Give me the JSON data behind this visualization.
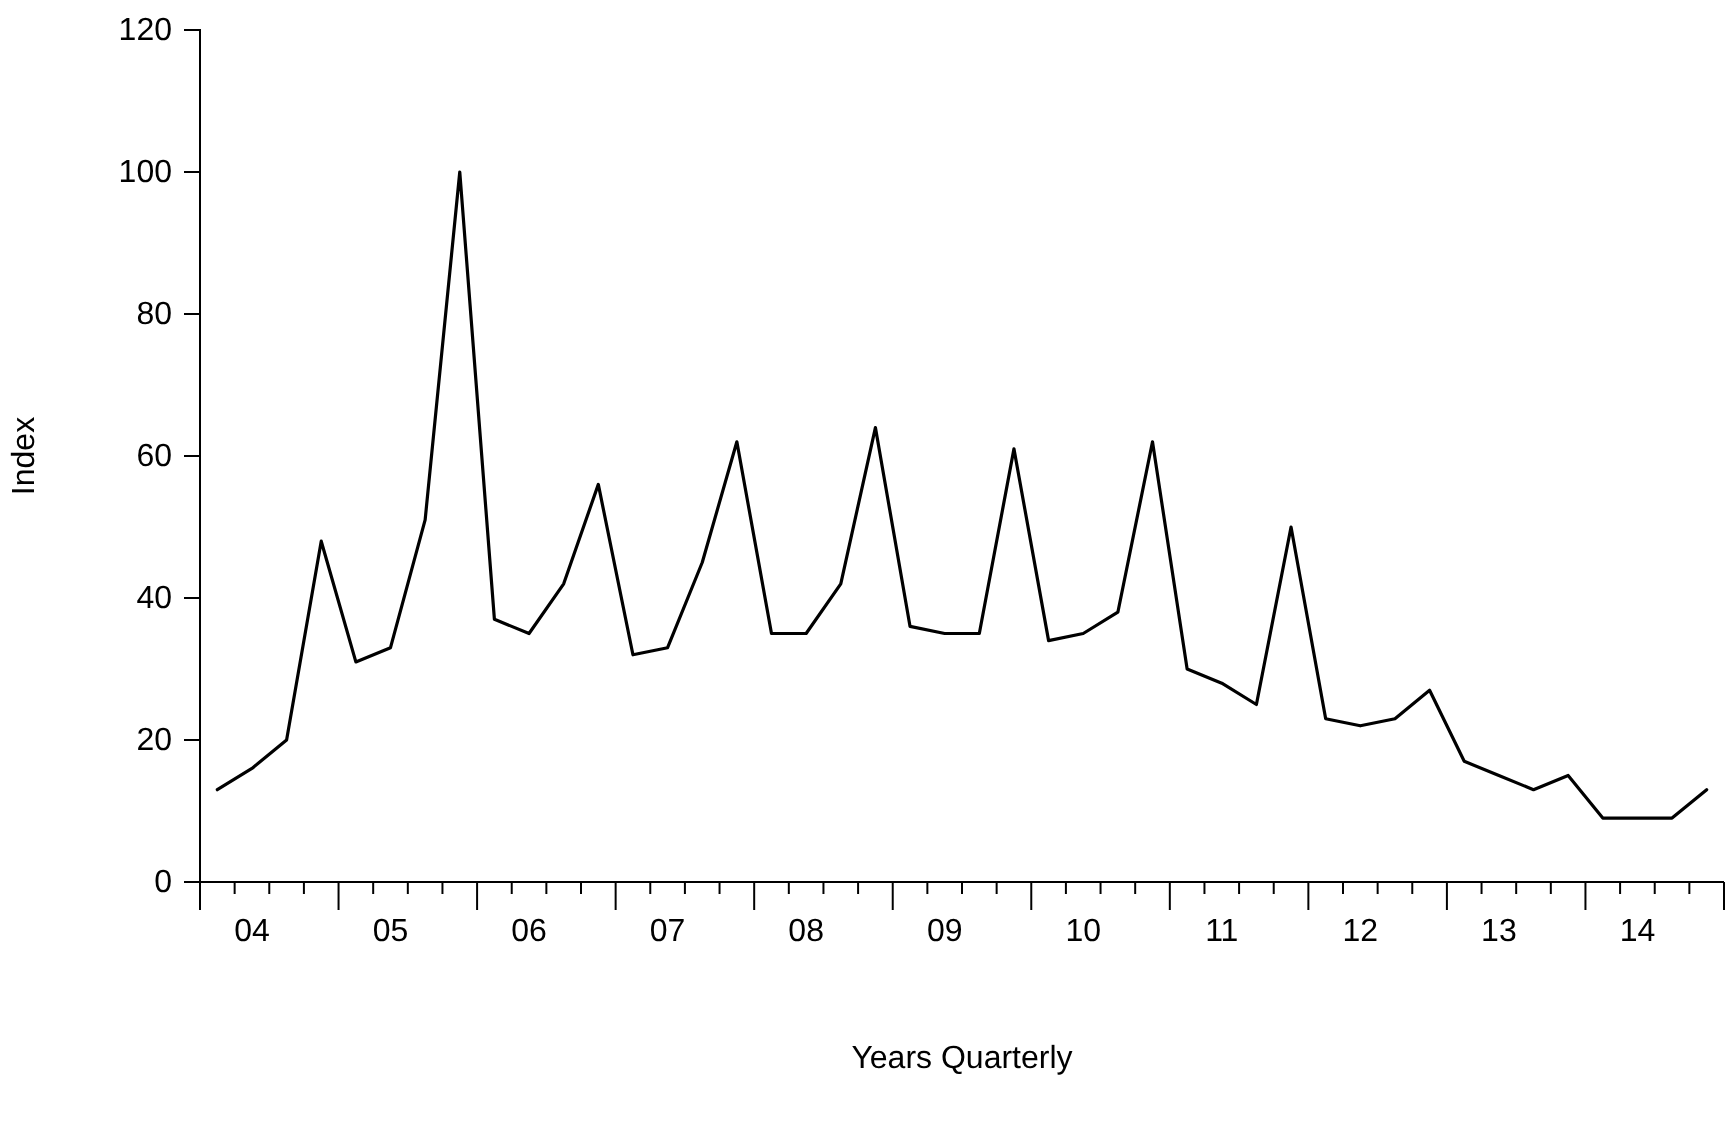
{
  "chart_data": {
    "type": "line",
    "xlabel": "Years Quarterly",
    "ylabel": "Index",
    "categories": [
      null,
      "04",
      null,
      null,
      null,
      "05",
      null,
      null,
      null,
      "06",
      null,
      null,
      null,
      "07",
      null,
      null,
      null,
      "08",
      null,
      null,
      null,
      "09",
      null,
      null,
      null,
      "10",
      null,
      null,
      null,
      "11",
      null,
      null,
      null,
      "12",
      null,
      null,
      null,
      "13",
      null,
      null,
      null,
      "14",
      null,
      null
    ],
    "series": [
      {
        "color": "#000000",
        "values": [
          13,
          16,
          20,
          48,
          31,
          33,
          51,
          100,
          37,
          35,
          42,
          56,
          32,
          33,
          45,
          62,
          35,
          35,
          42,
          64,
          36,
          35,
          35,
          61,
          34,
          35,
          38,
          62,
          30,
          28,
          25,
          50,
          23,
          22,
          23,
          27,
          17,
          15,
          13,
          15,
          9,
          9,
          9,
          13
        ]
      }
    ],
    "ylim": [
      0,
      120
    ],
    "yticks": [
      0,
      20,
      40,
      60,
      80,
      100,
      120
    ],
    "grid": false,
    "marker": "none",
    "line_style": "solid"
  }
}
